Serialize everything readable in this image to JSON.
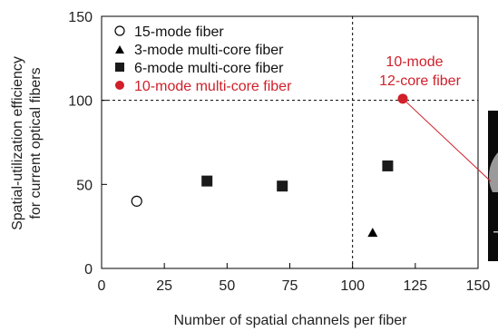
{
  "chart_data": {
    "type": "scatter",
    "xlabel": "Number of spatial channels per fiber",
    "ylabel_lines": [
      "Spatial-utilization efficiency",
      "for current optical fibers"
    ],
    "xlim": [
      0,
      150
    ],
    "ylim": [
      0,
      150
    ],
    "xticks": [
      0,
      25,
      50,
      75,
      100,
      125,
      150
    ],
    "yticks": [
      0,
      50,
      100,
      150
    ],
    "reference_lines": {
      "x": 100,
      "y": 100
    },
    "legend_position": "top-left",
    "series": [
      {
        "name": "15-mode fiber",
        "marker": "open-circle",
        "color": "#000000",
        "points": [
          [
            14,
            40
          ]
        ]
      },
      {
        "name": "3-mode multi-core fiber",
        "marker": "triangle",
        "color": "#000000",
        "points": [
          [
            108,
            21
          ]
        ]
      },
      {
        "name": "6-mode multi-core fiber",
        "marker": "square",
        "color": "#1a1a1a",
        "points": [
          [
            42,
            52
          ],
          [
            72,
            49
          ],
          [
            114,
            61
          ]
        ]
      },
      {
        "name": "10-mode multi-core fiber",
        "marker": "filled-circle",
        "color": "#d0202a",
        "points": [
          [
            120,
            101
          ]
        ]
      }
    ],
    "annotation": {
      "lines": [
        "10-mode",
        "12-core fiber"
      ],
      "color": "#d0202a"
    }
  }
}
